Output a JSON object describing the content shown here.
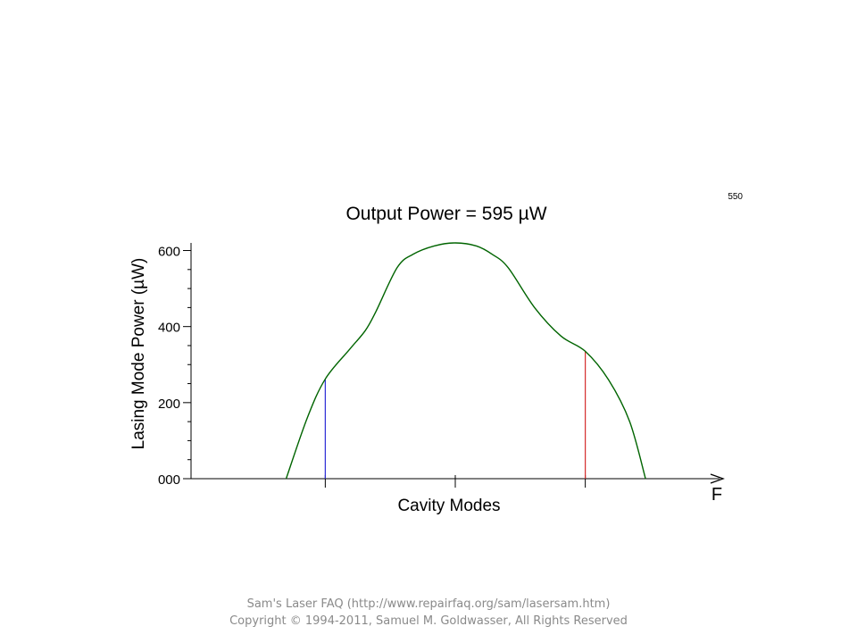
{
  "frame_number": "550",
  "chart_data": {
    "type": "line",
    "title": "Output Power = 595 µW",
    "xlabel": "Cavity Modes",
    "ylabel": "Lasing Mode Power (µW)",
    "x_axis_end_label": "F",
    "ylim": [
      0,
      620
    ],
    "xlim": [
      0,
      1
    ],
    "yticks": [
      {
        "value": 0,
        "label": "000"
      },
      {
        "value": 200,
        "label": "200"
      },
      {
        "value": 400,
        "label": "400"
      },
      {
        "value": 600,
        "label": "600"
      }
    ],
    "y_minor_step": 50,
    "x_ticks": [
      0.254,
      0.5,
      0.746
    ],
    "grid": false,
    "series": [
      {
        "color": "#006400",
        "x": [
          0.18,
          0.22,
          0.254,
          0.3,
          0.33,
          0.35,
          0.39,
          0.42,
          0.46,
          0.5,
          0.54,
          0.57,
          0.6,
          0.65,
          0.7,
          0.746,
          0.79,
          0.83,
          0.86
        ],
        "y": [
          0,
          160,
          262,
          340,
          390,
          440,
          555,
          590,
          612,
          620,
          612,
          590,
          555,
          450,
          375,
          335,
          260,
          150,
          0
        ]
      }
    ],
    "markers": [
      {
        "x": 0.254,
        "y": 262,
        "color": "#2b2bd6"
      },
      {
        "x": 0.746,
        "y": 335,
        "color": "#d42a2a"
      }
    ]
  },
  "footer": {
    "line1": "Sam's Laser FAQ (http://www.repairfaq.org/sam/lasersam.htm)",
    "line2": "Copyright © 1994-2011, Samuel M. Goldwasser, All Rights Reserved"
  }
}
